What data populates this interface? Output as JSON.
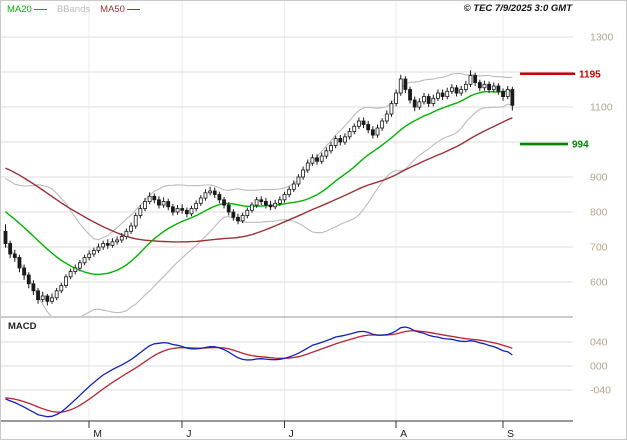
{
  "copyright": "© TEC 7/9/2025 3:0 GMT",
  "legend": {
    "ma20": "MA20",
    "bbands": "BBands",
    "ma50": "MA50"
  },
  "panels": {
    "macd_label": "MACD"
  },
  "colors": {
    "ma20": "#00b400",
    "ma50": "#993333",
    "bbands": "#bbbbbb",
    "macd": "#1122bb",
    "macd_signal": "#bb2233",
    "candle": "#1a1a1a",
    "candle_up_fill": "#ffffff",
    "grid": "#dedede",
    "vgrid": "#ebebeb",
    "separator": "#999999",
    "axis": "#333333",
    "axis_label": "#b3a58e",
    "resistance": "#cc0000",
    "support": "#008800"
  },
  "chart_data": {
    "type": "candlestick",
    "title": "",
    "x_axis": {
      "ticks": [
        {
          "index": 18,
          "label": "M"
        },
        {
          "index": 38,
          "label": "J"
        },
        {
          "index": 60,
          "label": "J"
        },
        {
          "index": 84,
          "label": "A"
        },
        {
          "index": 107,
          "label": "S"
        }
      ]
    },
    "price_panel": {
      "y_range": [
        540,
        1320
      ],
      "grid_values": [
        600,
        700,
        800,
        900,
        1000,
        1100,
        1200,
        1300
      ],
      "y_ticks": [
        {
          "value": 1300,
          "label": "1300"
        },
        {
          "value": 1100,
          "label": "1100"
        },
        {
          "value": 900,
          "label": "900"
        },
        {
          "value": 800,
          "label": "800"
        },
        {
          "value": 700,
          "label": "700"
        },
        {
          "value": 600,
          "label": "600"
        }
      ],
      "levels": [
        {
          "name": "resistance",
          "value": 1195,
          "label": "1195",
          "color": "#cc0000"
        },
        {
          "name": "support",
          "value": 994,
          "label": "994",
          "color": "#008800"
        }
      ],
      "overlays": {
        "ma_short_period": 20,
        "ma_long_period": 50,
        "bollinger_period": 20,
        "bollinger_k": 2
      },
      "history_closes": [
        980,
        990,
        1000,
        1010,
        1020,
        1010,
        1000,
        990,
        1000,
        1010,
        1020,
        1030,
        1040,
        1050,
        1040,
        1030,
        1040,
        1050,
        1060,
        1050,
        1040,
        1030,
        1020,
        1010,
        1000,
        990,
        975,
        960,
        945,
        930,
        915,
        900,
        885,
        870,
        855,
        840,
        825,
        810,
        800,
        790,
        780,
        795,
        785,
        775,
        790,
        780,
        770,
        760,
        750,
        745
      ],
      "candles": [
        [
          745,
          765,
          698,
          710
        ],
        [
          710,
          718,
          668,
          680
        ],
        [
          680,
          692,
          658,
          670
        ],
        [
          670,
          678,
          628,
          640
        ],
        [
          640,
          650,
          606,
          620
        ],
        [
          620,
          628,
          582,
          595
        ],
        [
          595,
          605,
          563,
          575
        ],
        [
          575,
          583,
          538,
          550
        ],
        [
          550,
          572,
          542,
          560
        ],
        [
          560,
          566,
          533,
          545
        ],
        [
          545,
          567,
          538,
          555
        ],
        [
          555,
          583,
          548,
          575
        ],
        [
          575,
          598,
          568,
          590
        ],
        [
          590,
          622,
          583,
          615
        ],
        [
          615,
          638,
          608,
          630
        ],
        [
          630,
          650,
          622,
          640
        ],
        [
          640,
          663,
          633,
          655
        ],
        [
          655,
          678,
          648,
          670
        ],
        [
          670,
          690,
          662,
          680
        ],
        [
          680,
          698,
          672,
          690
        ],
        [
          690,
          710,
          683,
          700
        ],
        [
          700,
          718,
          692,
          710
        ],
        [
          710,
          722,
          695,
          705
        ],
        [
          705,
          725,
          698,
          715
        ],
        [
          715,
          730,
          707,
          720
        ],
        [
          720,
          740,
          712,
          730
        ],
        [
          730,
          753,
          722,
          745
        ],
        [
          745,
          770,
          737,
          760
        ],
        [
          760,
          798,
          752,
          790
        ],
        [
          790,
          820,
          782,
          810
        ],
        [
          810,
          840,
          802,
          830
        ],
        [
          830,
          856,
          822,
          845
        ],
        [
          845,
          853,
          825,
          835
        ],
        [
          835,
          845,
          810,
          820
        ],
        [
          820,
          842,
          812,
          830
        ],
        [
          830,
          838,
          805,
          815
        ],
        [
          815,
          823,
          790,
          800
        ],
        [
          800,
          820,
          792,
          810
        ],
        [
          810,
          822,
          795,
          805
        ],
        [
          805,
          813,
          785,
          795
        ],
        [
          795,
          818,
          788,
          810
        ],
        [
          810,
          833,
          802,
          825
        ],
        [
          825,
          848,
          817,
          840
        ],
        [
          840,
          865,
          832,
          855
        ],
        [
          855,
          872,
          847,
          860
        ],
        [
          860,
          870,
          840,
          850
        ],
        [
          850,
          858,
          825,
          835
        ],
        [
          835,
          843,
          810,
          820
        ],
        [
          820,
          828,
          790,
          800
        ],
        [
          800,
          808,
          775,
          785
        ],
        [
          785,
          795,
          765,
          775
        ],
        [
          775,
          798,
          768,
          790
        ],
        [
          790,
          813,
          782,
          805
        ],
        [
          805,
          828,
          798,
          820
        ],
        [
          820,
          843,
          812,
          835
        ],
        [
          835,
          845,
          820,
          830
        ],
        [
          830,
          840,
          810,
          820
        ],
        [
          820,
          832,
          805,
          815
        ],
        [
          815,
          835,
          808,
          825
        ],
        [
          825,
          845,
          817,
          835
        ],
        [
          835,
          858,
          827,
          850
        ],
        [
          850,
          873,
          842,
          865
        ],
        [
          865,
          890,
          857,
          880
        ],
        [
          880,
          908,
          872,
          900
        ],
        [
          900,
          930,
          892,
          920
        ],
        [
          920,
          950,
          912,
          940
        ],
        [
          940,
          965,
          932,
          955
        ],
        [
          955,
          965,
          935,
          945
        ],
        [
          945,
          970,
          937,
          960
        ],
        [
          960,
          985,
          952,
          975
        ],
        [
          975,
          1000,
          967,
          990
        ],
        [
          990,
          1018,
          982,
          1010
        ],
        [
          1010,
          1020,
          990,
          1000
        ],
        [
          1000,
          1025,
          992,
          1015
        ],
        [
          1015,
          1040,
          1007,
          1030
        ],
        [
          1030,
          1053,
          1022,
          1045
        ],
        [
          1045,
          1070,
          1037,
          1060
        ],
        [
          1060,
          1070,
          1040,
          1050
        ],
        [
          1050,
          1060,
          1025,
          1035
        ],
        [
          1035,
          1045,
          1010,
          1020
        ],
        [
          1020,
          1050,
          1012,
          1040
        ],
        [
          1040,
          1068,
          1032,
          1060
        ],
        [
          1060,
          1090,
          1052,
          1080
        ],
        [
          1080,
          1118,
          1072,
          1110
        ],
        [
          1110,
          1150,
          1102,
          1140
        ],
        [
          1140,
          1192,
          1132,
          1180
        ],
        [
          1180,
          1188,
          1140,
          1150
        ],
        [
          1150,
          1158,
          1110,
          1120
        ],
        [
          1120,
          1130,
          1088,
          1100
        ],
        [
          1100,
          1125,
          1092,
          1115
        ],
        [
          1115,
          1140,
          1107,
          1130
        ],
        [
          1130,
          1138,
          1100,
          1110
        ],
        [
          1110,
          1135,
          1102,
          1125
        ],
        [
          1125,
          1150,
          1117,
          1140
        ],
        [
          1140,
          1150,
          1120,
          1130
        ],
        [
          1130,
          1155,
          1122,
          1145
        ],
        [
          1145,
          1165,
          1137,
          1155
        ],
        [
          1155,
          1163,
          1130,
          1140
        ],
        [
          1140,
          1160,
          1132,
          1150
        ],
        [
          1150,
          1175,
          1142,
          1165
        ],
        [
          1165,
          1205,
          1157,
          1190
        ],
        [
          1190,
          1198,
          1160,
          1170
        ],
        [
          1170,
          1178,
          1145,
          1155
        ],
        [
          1155,
          1175,
          1147,
          1165
        ],
        [
          1165,
          1173,
          1140,
          1150
        ],
        [
          1150,
          1170,
          1142,
          1160
        ],
        [
          1160,
          1168,
          1135,
          1145
        ],
        [
          1145,
          1153,
          1118,
          1130
        ],
        [
          1130,
          1160,
          1122,
          1150
        ],
        [
          1150,
          1158,
          1090,
          1105
        ]
      ]
    },
    "macd_panel": {
      "fast": 12,
      "slow": 26,
      "signal": 9,
      "y_ticks": [
        {
          "value": 40,
          "label": "040"
        },
        {
          "value": 0,
          "label": "000"
        },
        {
          "value": -40,
          "label": "-040"
        }
      ]
    }
  }
}
